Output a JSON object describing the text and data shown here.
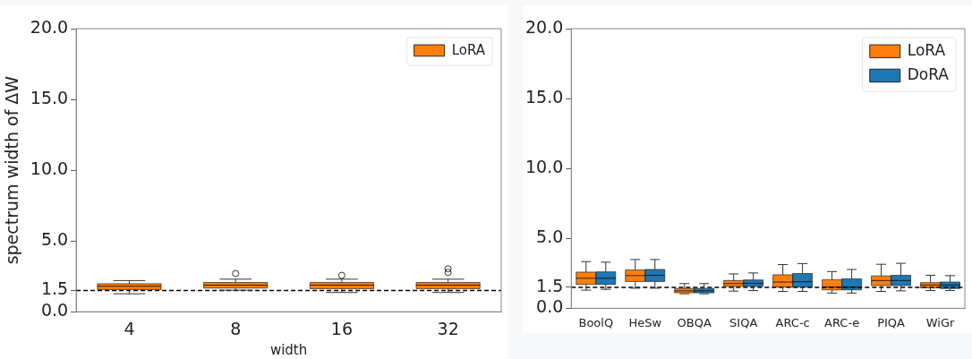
{
  "chart_data": [
    {
      "type": "box",
      "xlabel": "width",
      "ylabel": "spectrum width of ΔW",
      "categories": [
        "4",
        "8",
        "16",
        "32"
      ],
      "ylim": [
        0,
        20
      ],
      "yticks": [
        {
          "value": 0,
          "label": "0.0"
        },
        {
          "value": 1.5,
          "label": "1.5"
        },
        {
          "value": 5,
          "label": "5.0"
        },
        {
          "value": 10,
          "label": "10.0"
        },
        {
          "value": 15,
          "label": "15.0"
        },
        {
          "value": 20,
          "label": "20.0"
        }
      ],
      "grid": false,
      "legend": "top right",
      "ref_lines": [
        {
          "axis": "y",
          "value": 1.5,
          "line_style": "dashed",
          "color": "#000000"
        }
      ],
      "series": [
        {
          "name": "LoRA",
          "color": "#ff7f0e",
          "boxes": [
            {
              "low": 1.27,
              "q1": 1.57,
              "median": 1.8,
              "q3": 1.98,
              "high": 2.2
            },
            {
              "low": 1.52,
              "q1": 1.67,
              "median": 1.88,
              "q3": 2.07,
              "high": 2.3,
              "outliers": [
                2.7
              ]
            },
            {
              "low": 1.36,
              "q1": 1.63,
              "median": 1.88,
              "q3": 2.07,
              "high": 2.3,
              "outliers": [
                2.57
              ]
            },
            {
              "low": 1.36,
              "q1": 1.63,
              "median": 1.88,
              "q3": 2.07,
              "high": 2.3,
              "outliers": [
                2.78,
                3.03
              ]
            }
          ]
        }
      ]
    },
    {
      "type": "box",
      "categories": [
        "BoolQ",
        "HeSw",
        "OBQA",
        "SIQA",
        "ARC-c",
        "ARC-e",
        "PIQA",
        "WiGr"
      ],
      "ylim": [
        0,
        20
      ],
      "yticks": [
        {
          "value": 0,
          "label": "0.0"
        },
        {
          "value": 1.5,
          "label": "1.5"
        },
        {
          "value": 5,
          "label": "5.0"
        },
        {
          "value": 10,
          "label": "10.0"
        },
        {
          "value": 15,
          "label": "15.0"
        },
        {
          "value": 20,
          "label": "20.0"
        }
      ],
      "grid": false,
      "legend": "top right",
      "ref_lines": [
        {
          "axis": "y",
          "value": 1.5,
          "line_style": "dashed",
          "color": "#000000"
        }
      ],
      "series": [
        {
          "name": "LoRA",
          "color": "#ff7f0e",
          "boxes": [
            {
              "low": 1.3,
              "q1": 1.71,
              "median": 2.15,
              "q3": 2.59,
              "high": 3.34
            },
            {
              "low": 1.44,
              "q1": 1.92,
              "median": 2.34,
              "q3": 2.74,
              "high": 3.49
            },
            {
              "low": 1.04,
              "q1": 1.11,
              "median": 1.25,
              "q3": 1.42,
              "high": 1.77
            },
            {
              "low": 1.23,
              "q1": 1.57,
              "median": 1.77,
              "q3": 1.99,
              "high": 2.46
            },
            {
              "low": 1.21,
              "q1": 1.52,
              "median": 1.88,
              "q3": 2.4,
              "high": 3.13
            },
            {
              "low": 1.09,
              "q1": 1.32,
              "median": 1.52,
              "q3": 2.05,
              "high": 2.63
            },
            {
              "low": 1.21,
              "q1": 1.63,
              "median": 1.99,
              "q3": 2.32,
              "high": 3.15
            },
            {
              "low": 1.27,
              "q1": 1.46,
              "median": 1.67,
              "q3": 1.84,
              "high": 2.36
            }
          ]
        },
        {
          "name": "DoRA",
          "color": "#1f77b4",
          "boxes": [
            {
              "low": 1.36,
              "q1": 1.71,
              "median": 2.15,
              "q3": 2.61,
              "high": 3.3
            },
            {
              "low": 1.44,
              "q1": 1.92,
              "median": 2.36,
              "q3": 2.78,
              "high": 3.49
            },
            {
              "low": 1.04,
              "q1": 1.11,
              "median": 1.25,
              "q3": 1.42,
              "high": 1.77
            },
            {
              "low": 1.27,
              "q1": 1.57,
              "median": 1.79,
              "q3": 2.03,
              "high": 2.53
            },
            {
              "low": 1.21,
              "q1": 1.52,
              "median": 1.9,
              "q3": 2.49,
              "high": 3.2
            },
            {
              "low": 1.09,
              "q1": 1.32,
              "median": 1.52,
              "q3": 2.11,
              "high": 2.78
            },
            {
              "low": 1.25,
              "q1": 1.63,
              "median": 1.99,
              "q3": 2.36,
              "high": 3.22
            },
            {
              "low": 1.27,
              "q1": 1.42,
              "median": 1.67,
              "q3": 1.88,
              "high": 2.34
            }
          ]
        }
      ]
    }
  ]
}
